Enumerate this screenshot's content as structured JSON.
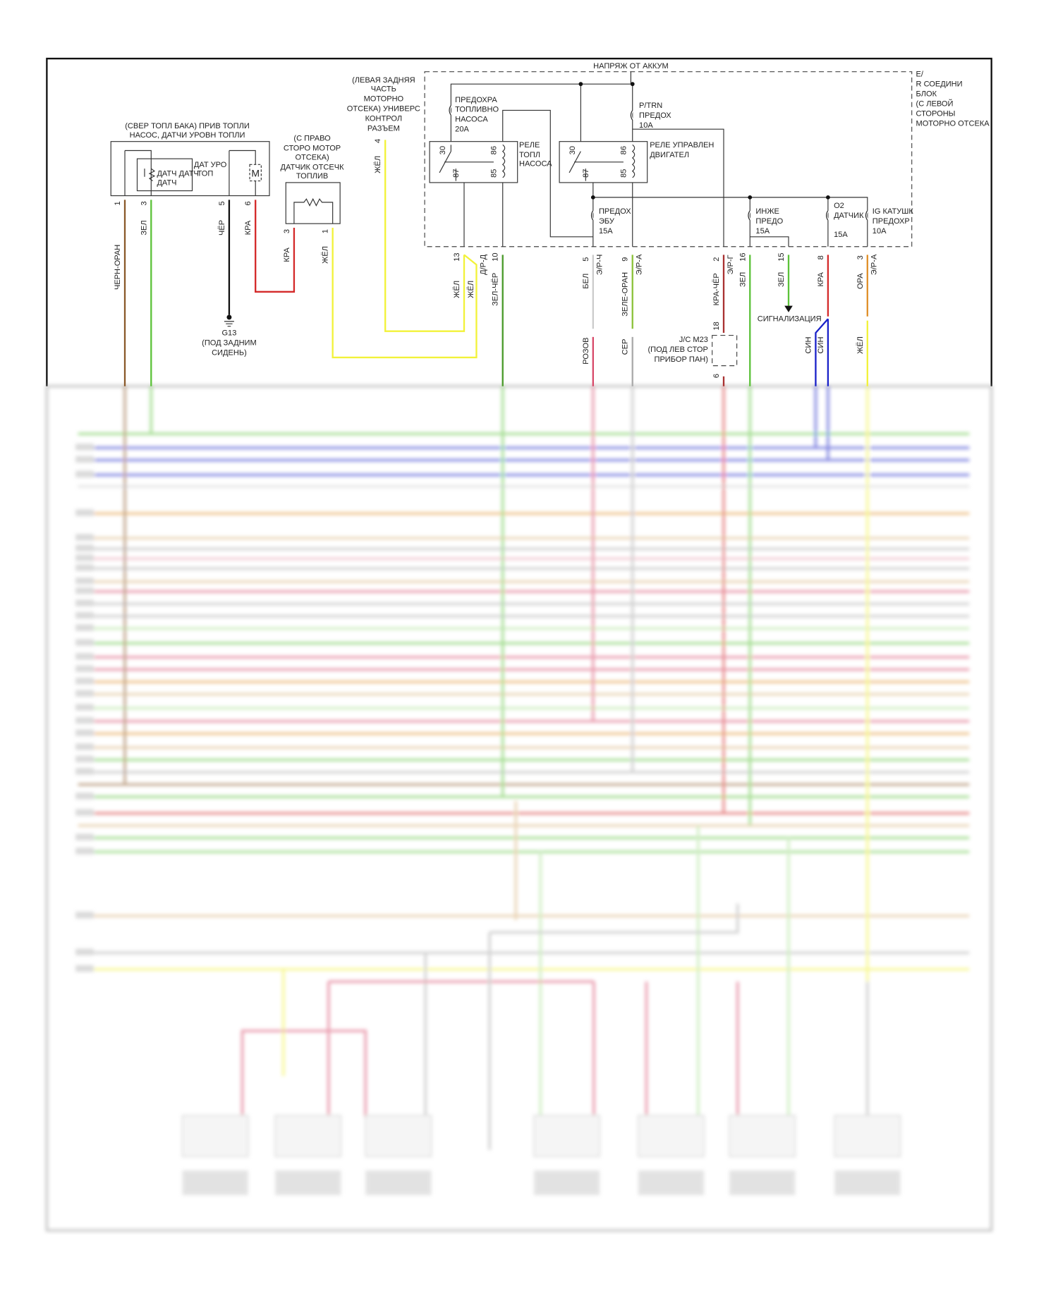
{
  "header": {
    "battery": "НАПРЯЖ ОТ АККУМ"
  },
  "junction_block": {
    "lines": [
      "E/",
      "R СОЕДИНИ",
      "БЛОК",
      "(С ЛЕВОЙ",
      "СТОРОНЫ",
      "МОТОРНО ОТСЕКА"
    ]
  },
  "fuel_pump": {
    "title": [
      "(СВЕР ТОПЛ БАКА) ПРИВ ТОПЛИ",
      "НАСОС, ДАТЧИ УРОВН ТОПЛИ"
    ],
    "sensor_label": "ДАТЧ ДАТЧ",
    "sensor_label2": "ДАТЧ",
    "level_label": "ДАТ УРО",
    "level_label2": "ТОП",
    "motor": "M",
    "pins": [
      {
        "num": "1",
        "wire": "ЧЕРН-ОРАН"
      },
      {
        "num": "3",
        "wire": "ЗЕЛ"
      },
      {
        "num": "5",
        "wire": "ЧЁР"
      },
      {
        "num": "6",
        "wire": "КРА"
      }
    ]
  },
  "ground": {
    "id": "G13",
    "location": [
      "(ПОД ЗАДНИМ",
      "СИДЕНЬ)"
    ]
  },
  "cutoff_sensor": {
    "title": [
      "(С ПРАВО",
      "СТОРО МОТОР",
      "ОТСЕКА)",
      "ДАТЧИК ОТСЕЧК",
      "ТОПЛИВ"
    ],
    "pins": [
      {
        "num": "3",
        "wire": "КРА"
      },
      {
        "num": "1",
        "wire": "ЖЁЛ"
      }
    ]
  },
  "universal_connector": {
    "title": [
      "(ЛЕВАЯ ЗАДНЯЯ",
      "ЧАСТЬ",
      "МОТОРНО",
      "ОТСЕКА) УНИВЕРС",
      "КОНТРОЛ",
      "РАЗЪЕМ"
    ],
    "pin": "4",
    "wire": "ЖЁЛ"
  },
  "fuses": {
    "fuel_pump": [
      "ПРЕДОХРА",
      "ТОПЛИВНО",
      "НАСОСА",
      "20А"
    ],
    "ptrn": [
      "P/TRN",
      "ПРЕДОХ",
      "10А"
    ],
    "ecu": [
      "ПРЕДОХ",
      "ЭБУ",
      "15А"
    ],
    "injector": [
      "ИНЖЕ",
      "ПРЕДО",
      "15А"
    ],
    "o2": [
      "O2",
      "ДАТЧИК",
      "15А"
    ],
    "ig_coil": [
      "IG КАТУШК",
      "ПРЕДОХР",
      "10А"
    ]
  },
  "relays": {
    "fuel_pump": [
      "РЕЛЕ",
      "ТОПЛ",
      "НАСОСА"
    ],
    "engine": [
      "РЕЛЕ УПРАВЛЕН",
      "ДВИГАТЕЛ"
    ],
    "terminals": [
      "30",
      "86",
      "87",
      "85"
    ]
  },
  "block_pins": [
    {
      "num": "13",
      "conn": "",
      "wire": "ЖЁЛ",
      "wire2": "ЖЁЛ"
    },
    {
      "num": "10",
      "conn": "Д/Р-Д",
      "wire": "ЗЕЛ-ЧЁР"
    },
    {
      "num": "5",
      "conn": "Э/Р-Ч",
      "wire": "БЕЛ",
      "wire_below": "РОЗОВ"
    },
    {
      "num": "9",
      "conn": "Э/Р-А",
      "wire": "ЗЕЛЕ-ОРАН",
      "wire_below": "СЕР"
    },
    {
      "num": "2",
      "conn": "Э/Р-Г",
      "wire": "КРА-ЧЁР"
    },
    {
      "num": "16",
      "conn": "",
      "wire": "ЗЕЛ"
    },
    {
      "num": "15",
      "conn": "",
      "wire": "ЗЕЛ"
    },
    {
      "num": "8",
      "conn": "",
      "wire": "КРА",
      "wire_below": "СИН",
      "wire_below2": "СИН"
    },
    {
      "num": "3",
      "conn": "Э/Р-А",
      "wire": "ОРА",
      "wire_below": "ЖЁЛ"
    }
  ],
  "joint": {
    "lines": [
      "J/C M23",
      "(ПОД ЛЕВ СТОР",
      "ПРИБОР ПАН)"
    ],
    "pin_top": "18",
    "pin_bottom": "6"
  },
  "alarm": "СИГНАЛИЗАЦИЯ",
  "colors": {
    "green": "#5cc23a",
    "yellow": "#f2f23a",
    "red": "#d42a2a",
    "blue": "#1a22c8",
    "orange": "#e0902a",
    "pink": "#d84a6a",
    "brown": "#8b5a2b",
    "gray": "#aaaaaa"
  }
}
